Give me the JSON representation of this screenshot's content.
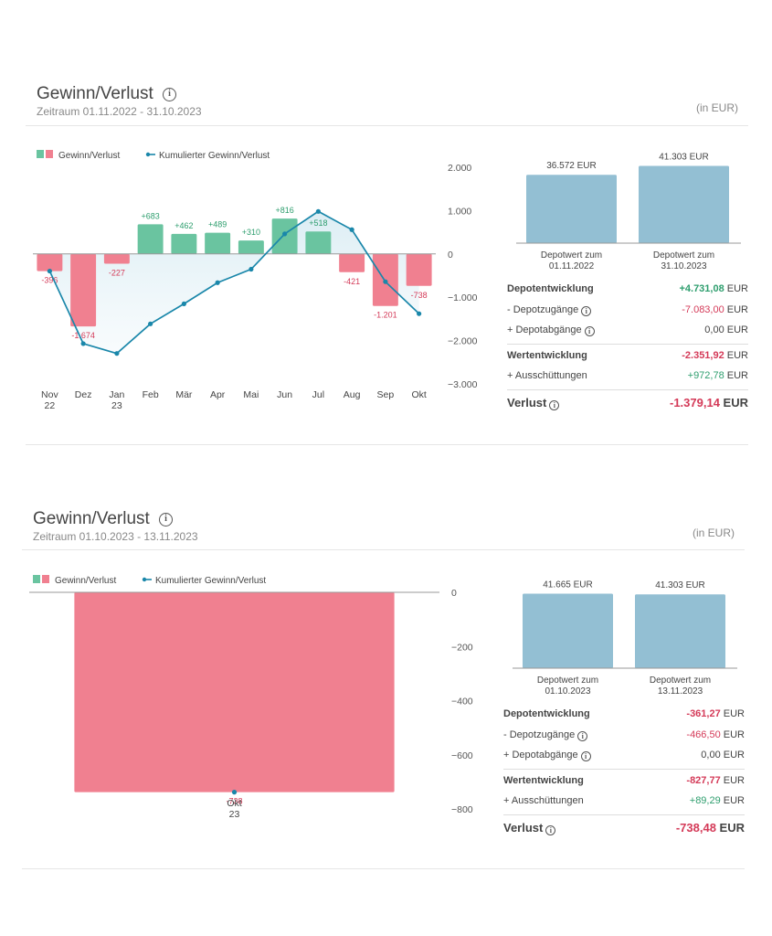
{
  "colors": {
    "gain": "#6ac4a0",
    "loss": "#f08090",
    "cumulative": "#1a87aa",
    "depot_bar": "#93bfd3",
    "positive_text": "#2e9e6e",
    "negative_text": "#d43a58"
  },
  "panels": [
    {
      "title": "Gewinn/Verlust",
      "period": "Zeitraum 01.11.2022 - 31.10.2023",
      "unit_note": "(in EUR)",
      "legend": {
        "bars": "Gewinn/Verlust",
        "line": "Kumulierter Gewinn/Verlust"
      },
      "chart_data": {
        "type": "bar",
        "categories": [
          {
            "top": "Nov",
            "bottom": "22"
          },
          {
            "top": "Dez",
            "bottom": ""
          },
          {
            "top": "Jan",
            "bottom": "23"
          },
          {
            "top": "Feb",
            "bottom": ""
          },
          {
            "top": "Mär",
            "bottom": ""
          },
          {
            "top": "Apr",
            "bottom": ""
          },
          {
            "top": "Mai",
            "bottom": ""
          },
          {
            "top": "Jun",
            "bottom": ""
          },
          {
            "top": "Jul",
            "bottom": ""
          },
          {
            "top": "Aug",
            "bottom": ""
          },
          {
            "top": "Sep",
            "bottom": ""
          },
          {
            "top": "Okt",
            "bottom": ""
          }
        ],
        "series": [
          {
            "values": [
              -396,
              -1674,
              -227,
              683,
              462,
              489,
              310,
              816,
              518,
              -421,
              -1201,
              -738
            ],
            "labels": [
              "-396",
              "-1.674",
              "-227",
              "+683",
              "+462",
              "+489",
              "+310",
              "+816",
              "+518",
              "-421",
              "-1.201",
              "-738"
            ]
          },
          {
            "type": "line",
            "values": [
              -396,
              -2070,
              -2297,
              -1614,
              -1152,
              -663,
              -353,
              463,
              981,
              560,
              -641,
              -1379
            ]
          }
        ],
        "y_ticks": [
          2000,
          1000,
          0,
          -1000,
          -2000,
          -3000
        ],
        "y_tick_labels": [
          "2.000",
          "1.000",
          "0",
          "−1.000",
          "−2.000",
          "−3.000"
        ],
        "ylim": [
          -3000,
          2000
        ]
      },
      "depot": {
        "start": {
          "value": 36572,
          "value_label": "36.572 EUR",
          "caption1": "Depotwert zum",
          "caption2": "01.11.2022"
        },
        "end": {
          "value": 41303,
          "value_label": "41.303 EUR",
          "caption1": "Depotwert zum",
          "caption2": "31.10.2023"
        }
      },
      "rows": [
        {
          "label": "Depotentwicklung",
          "value": "+4.731,08",
          "currency": "EUR",
          "tone": "pos",
          "bold": true
        },
        {
          "label": "- Depotzugänge",
          "info": true,
          "value": "-7.083,00",
          "currency": "EUR",
          "tone": "neg"
        },
        {
          "label": "+ Depotabgänge",
          "info": true,
          "value": "0,00",
          "currency": "EUR",
          "tone": "neu"
        },
        {
          "label": "Wertentwicklung",
          "value": "-2.351,92",
          "currency": "EUR",
          "tone": "neg",
          "bold": true
        },
        {
          "label": "+ Ausschüttungen",
          "value": "+972,78",
          "currency": "EUR",
          "tone": "pos"
        },
        {
          "label": "Verlust",
          "info": true,
          "value": "-1.379,14",
          "currency": "EUR",
          "tone": "neg",
          "big": true
        }
      ]
    },
    {
      "title": "Gewinn/Verlust",
      "period": "Zeitraum 01.10.2023 - 13.11.2023",
      "unit_note": "(in EUR)",
      "legend": {
        "bars": "Gewinn/Verlust",
        "line": "Kumulierter Gewinn/Verlust"
      },
      "chart_data": {
        "type": "bar",
        "categories": [
          {
            "top": "Okt",
            "bottom": "23"
          }
        ],
        "series": [
          {
            "values": [
              -738
            ],
            "labels": [
              "-738"
            ]
          },
          {
            "type": "line",
            "values": [
              -738
            ]
          }
        ],
        "y_ticks": [
          0,
          -200,
          -400,
          -600,
          -800
        ],
        "y_tick_labels": [
          "0",
          "−200",
          "−400",
          "−600",
          "−800"
        ],
        "ylim": [
          -800,
          0
        ]
      },
      "depot": {
        "start": {
          "value": 41665,
          "value_label": "41.665 EUR",
          "caption1": "Depotwert zum",
          "caption2": "01.10.2023"
        },
        "end": {
          "value": 41303,
          "value_label": "41.303 EUR",
          "caption1": "Depotwert zum",
          "caption2": "13.11.2023"
        }
      },
      "rows": [
        {
          "label": "Depotentwicklung",
          "value": "-361,27",
          "currency": "EUR",
          "tone": "neg",
          "bold": true
        },
        {
          "label": "- Depotzugänge",
          "info": true,
          "value": "-466,50",
          "currency": "EUR",
          "tone": "neg"
        },
        {
          "label": "+ Depotabgänge",
          "info": true,
          "value": "0,00",
          "currency": "EUR",
          "tone": "neu"
        },
        {
          "label": "Wertentwicklung",
          "value": "-827,77",
          "currency": "EUR",
          "tone": "neg",
          "bold": true
        },
        {
          "label": "+ Ausschüttungen",
          "value": "+89,29",
          "currency": "EUR",
          "tone": "pos"
        },
        {
          "label": "Verlust",
          "info": true,
          "value": "-738,48",
          "currency": "EUR",
          "tone": "neg",
          "big": true
        }
      ]
    }
  ]
}
